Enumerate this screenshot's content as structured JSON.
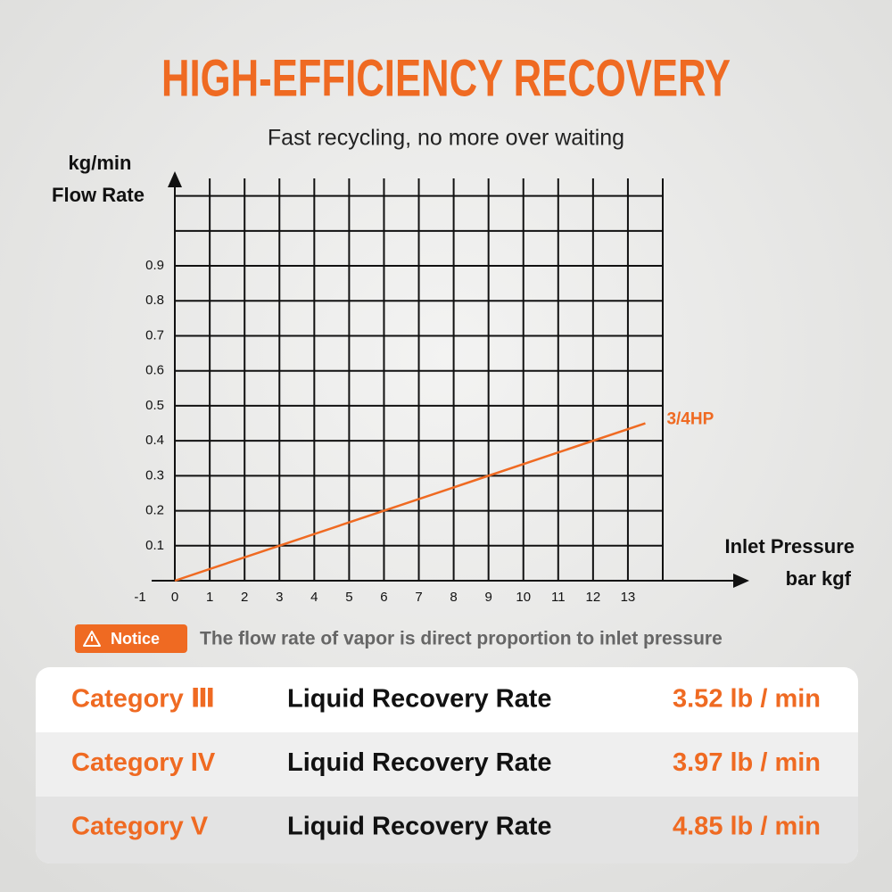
{
  "header": {
    "title": "HIGH-EFFICIENCY RECOVERY",
    "subtitle": "Fast recycling, no more over waiting"
  },
  "chart_data": {
    "type": "line",
    "ylabel": [
      "kg/min",
      "Flow Rate"
    ],
    "xlabel": [
      "Inlet Pressure",
      "bar kgf"
    ],
    "x": [
      0,
      13.5
    ],
    "series": [
      {
        "name": "3/4HP",
        "color": "#ef6a22",
        "values": [
          0,
          0.45
        ]
      }
    ],
    "xlim": [
      -1,
      14
    ],
    "ylim": [
      0,
      1.15
    ],
    "xticks": [
      -1,
      0,
      1,
      2,
      3,
      4,
      5,
      6,
      7,
      8,
      9,
      10,
      11,
      12,
      13
    ],
    "yticks": [
      0.1,
      0.2,
      0.3,
      0.4,
      0.5,
      0.6,
      0.7,
      0.8,
      0.9
    ],
    "grid": true
  },
  "notice": {
    "badge": "Notice",
    "text": "The flow rate of vapor is direct proportion to inlet pressure"
  },
  "table": {
    "rows": [
      [
        "Category Ⅲ",
        "Liquid Recovery Rate",
        "3.52 lb / min"
      ],
      [
        "Category IV",
        "Liquid Recovery Rate",
        "3.97 lb / min"
      ],
      [
        "Category V",
        "Liquid Recovery Rate",
        "4.85 lb / min"
      ]
    ]
  }
}
